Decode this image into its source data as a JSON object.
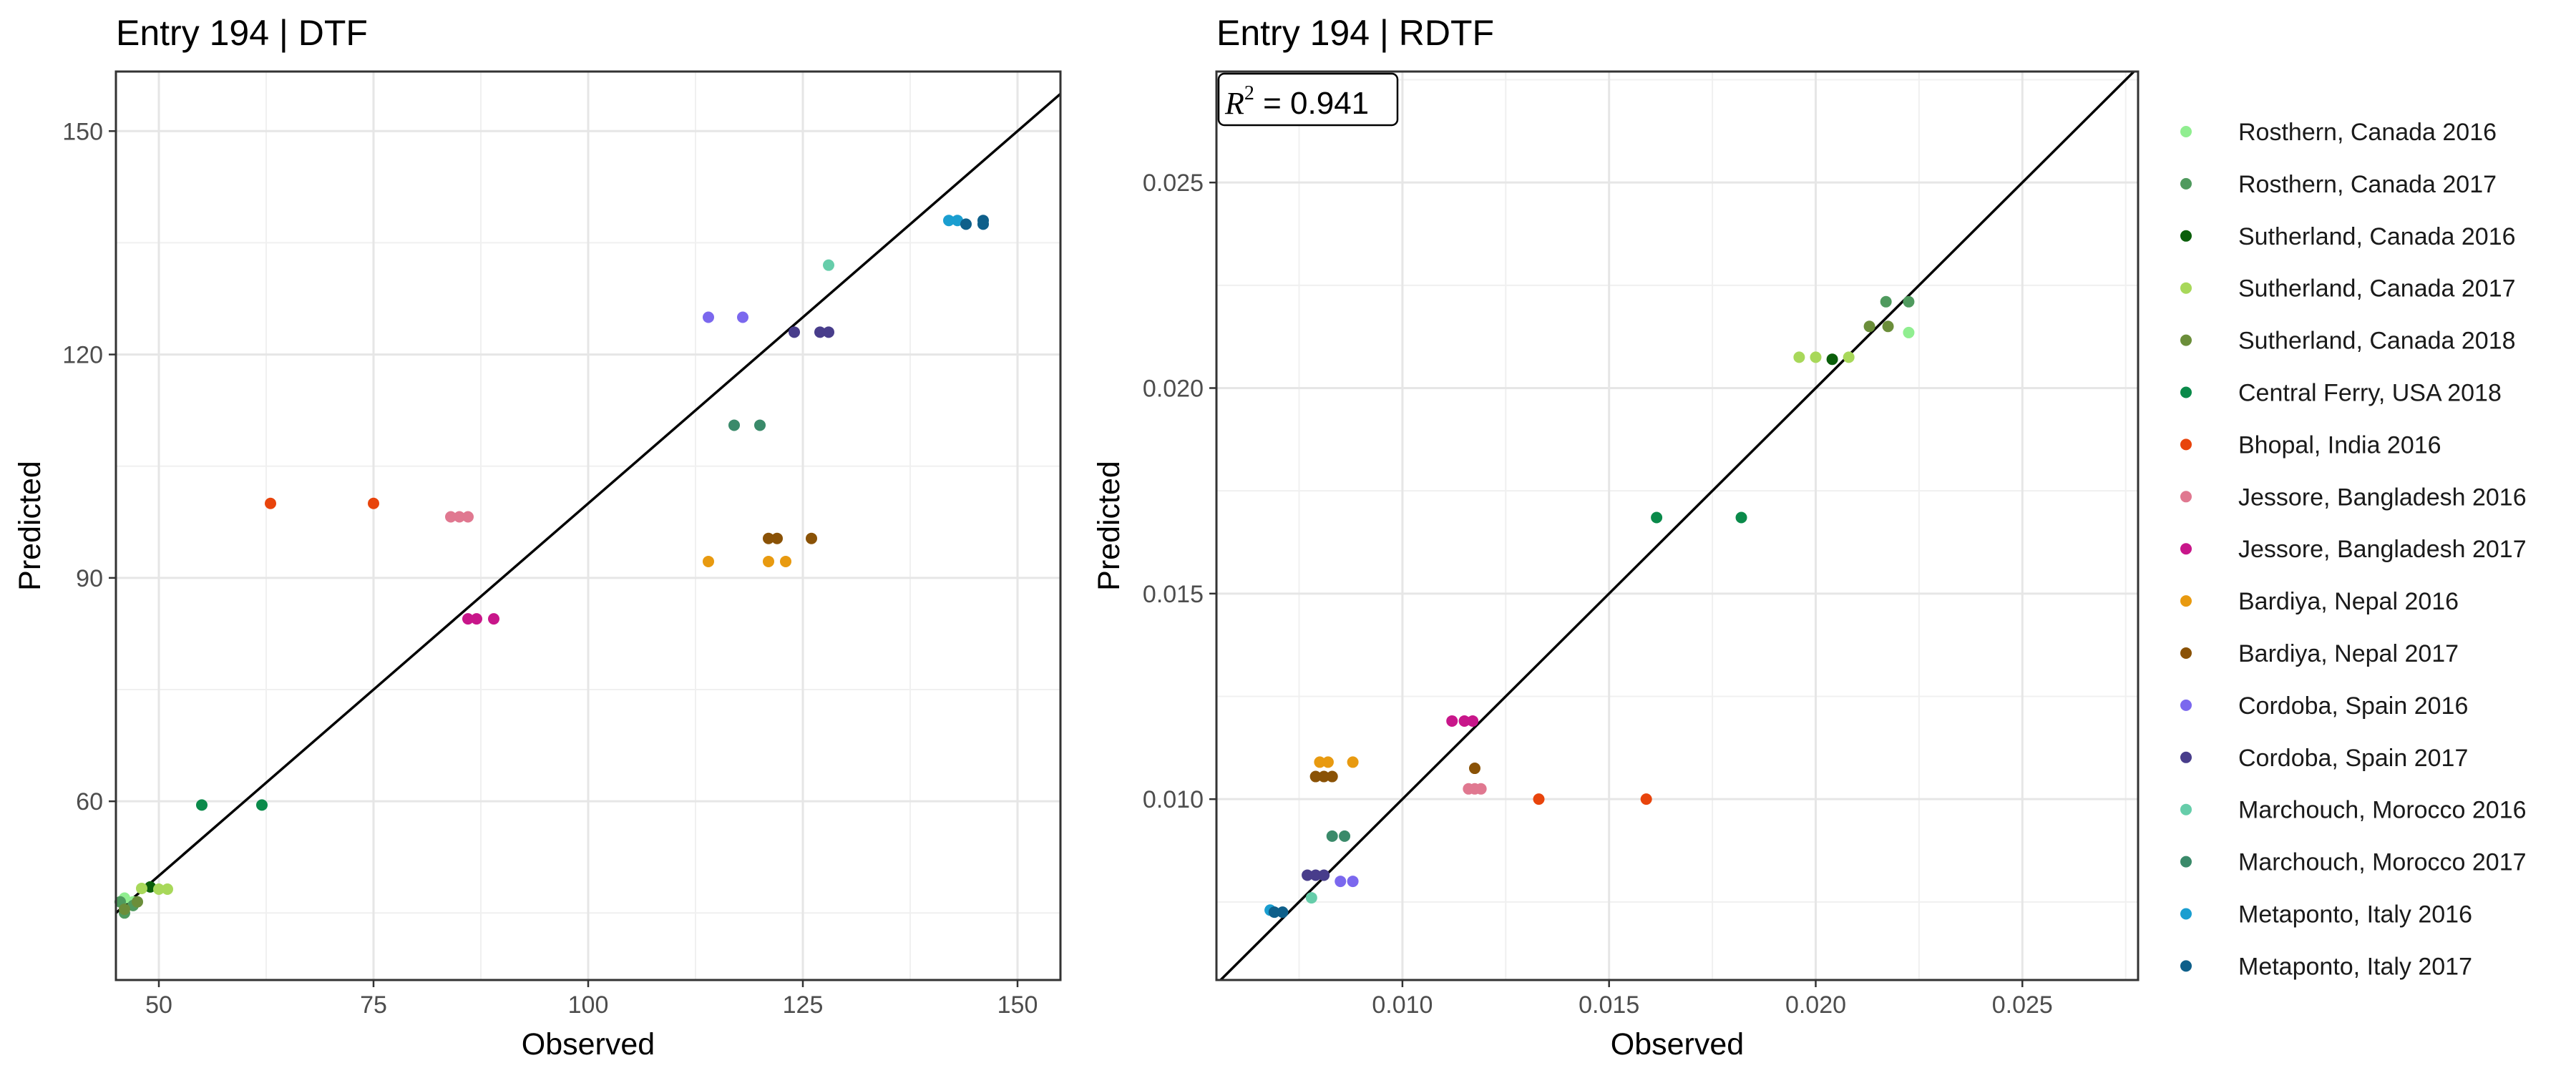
{
  "chart_data": [
    {
      "type": "scatter",
      "title": "Entry 194 | DTF",
      "xlabel": "Observed",
      "ylabel": "Predicted",
      "xlim": [
        45,
        155
      ],
      "ylim": [
        36,
        158
      ],
      "xticks": [
        50,
        75,
        100,
        125,
        150
      ],
      "yticks": [
        60,
        90,
        120,
        150
      ],
      "xtick_labels": [
        "50",
        "75",
        "100",
        "125",
        "150"
      ],
      "ytick_labels": [
        "60",
        "90",
        "120",
        "150"
      ],
      "grid": true,
      "reference_line": "y = x",
      "series": [
        {
          "name": "Rosthern, Canada 2016",
          "color": "#90ee90",
          "points": [
            [
              46,
              47
            ],
            [
              47,
              46.5
            ]
          ]
        },
        {
          "name": "Rosthern, Canada 2017",
          "color": "#4f9a5e",
          "points": [
            [
              45.5,
              46.5
            ],
            [
              46,
              45
            ],
            [
              47,
              46
            ]
          ]
        },
        {
          "name": "Sutherland, Canada 2016",
          "color": "#0a5e0a",
          "points": [
            [
              49,
              48.5
            ]
          ]
        },
        {
          "name": "Sutherland, Canada 2017",
          "color": "#a8d85a",
          "points": [
            [
              48,
              48.3
            ],
            [
              50,
              48.2
            ],
            [
              51,
              48.2
            ]
          ]
        },
        {
          "name": "Sutherland, Canada 2018",
          "color": "#6b8e3a",
          "points": [
            [
              46,
              45.5
            ],
            [
              47.5,
              46.5
            ]
          ]
        },
        {
          "name": "Central Ferry, USA 2018",
          "color": "#0a8a4a",
          "points": [
            [
              55,
              59.5
            ],
            [
              62,
              59.5
            ]
          ]
        },
        {
          "name": "Bhopal, India 2016",
          "color": "#e8440c",
          "points": [
            [
              63,
              100
            ],
            [
              75,
              100
            ]
          ]
        },
        {
          "name": "Jessore, Bangladesh 2016",
          "color": "#e07890",
          "points": [
            [
              84,
              98.2
            ],
            [
              85,
              98.2
            ],
            [
              86,
              98.2
            ]
          ]
        },
        {
          "name": "Jessore, Bangladesh 2017",
          "color": "#c8168a",
          "points": [
            [
              86,
              84.5
            ],
            [
              87,
              84.5
            ],
            [
              89,
              84.5
            ]
          ]
        },
        {
          "name": "Bardiya, Nepal 2016",
          "color": "#e89a10",
          "points": [
            [
              114,
              92.2
            ],
            [
              121,
              92.2
            ],
            [
              123,
              92.2
            ]
          ]
        },
        {
          "name": "Bardiya, Nepal 2017",
          "color": "#8a5206",
          "points": [
            [
              121,
              95.3
            ],
            [
              122,
              95.3
            ],
            [
              126,
              95.3
            ]
          ]
        },
        {
          "name": "Cordoba, Spain 2016",
          "color": "#7b68ee",
          "points": [
            [
              114,
              125
            ],
            [
              118,
              125
            ]
          ]
        },
        {
          "name": "Cordoba, Spain 2017",
          "color": "#483d8b",
          "points": [
            [
              124,
              123
            ],
            [
              127,
              123
            ],
            [
              128,
              123
            ]
          ]
        },
        {
          "name": "Marchouch, Morocco 2016",
          "color": "#66cdaa",
          "points": [
            [
              128,
              132
            ]
          ]
        },
        {
          "name": "Marchouch, Morocco 2017",
          "color": "#3a8a6a",
          "points": [
            [
              117,
              110.5
            ],
            [
              120,
              110.5
            ]
          ]
        },
        {
          "name": "Metaponto, Italy 2016",
          "color": "#1a9ed0",
          "points": [
            [
              142,
              138
            ],
            [
              143,
              138
            ]
          ]
        },
        {
          "name": "Metaponto, Italy 2017",
          "color": "#0e5f8a",
          "points": [
            [
              144,
              137.5
            ],
            [
              146,
              137.5
            ],
            [
              146,
              138
            ]
          ]
        }
      ]
    },
    {
      "type": "scatter",
      "title": "Entry 194 | RDTF",
      "xlabel": "Observed",
      "ylabel": "Predicted",
      "xlim": [
        0.0055,
        0.0278
      ],
      "ylim": [
        0.0056,
        0.0277
      ],
      "xticks": [
        0.01,
        0.015,
        0.02,
        0.025
      ],
      "yticks": [
        0.01,
        0.015,
        0.02,
        0.025
      ],
      "xtick_labels": [
        "0.010",
        "0.015",
        "0.020",
        "0.025"
      ],
      "ytick_labels": [
        "0.010",
        "0.015",
        "0.020",
        "0.025"
      ],
      "grid": true,
      "reference_line": "y = x",
      "annotation": {
        "label": "R",
        "exponent": "2",
        "equals": " = ",
        "value": "0.941",
        "position": "top-left"
      },
      "series": [
        {
          "name": "Rosthern, Canada 2016",
          "color": "#90ee90",
          "points": [
            [
              0.02225,
              0.02135
            ]
          ]
        },
        {
          "name": "Rosthern, Canada 2017",
          "color": "#4f9a5e",
          "points": [
            [
              0.0217,
              0.0221
            ],
            [
              0.02225,
              0.0221
            ]
          ]
        },
        {
          "name": "Sutherland, Canada 2016",
          "color": "#0a5e0a",
          "points": [
            [
              0.0204,
              0.0207
            ]
          ]
        },
        {
          "name": "Sutherland, Canada 2017",
          "color": "#a8d85a",
          "points": [
            [
              0.0196,
              0.02075
            ],
            [
              0.02,
              0.02075
            ],
            [
              0.0208,
              0.02075
            ]
          ]
        },
        {
          "name": "Sutherland, Canada 2018",
          "color": "#6b8e3a",
          "points": [
            [
              0.0213,
              0.0215
            ],
            [
              0.02175,
              0.0215
            ]
          ]
        },
        {
          "name": "Central Ferry, USA 2018",
          "color": "#0a8a4a",
          "points": [
            [
              0.01615,
              0.01685
            ],
            [
              0.0182,
              0.01685
            ]
          ]
        },
        {
          "name": "Bhopal, India 2016",
          "color": "#e8440c",
          "points": [
            [
              0.0133,
              0.01
            ],
            [
              0.0159,
              0.01
            ]
          ]
        },
        {
          "name": "Jessore, Bangladesh 2016",
          "color": "#e07890",
          "points": [
            [
              0.0116,
              0.01025
            ],
            [
              0.01175,
              0.01025
            ],
            [
              0.0119,
              0.01025
            ]
          ]
        },
        {
          "name": "Jessore, Bangladesh 2017",
          "color": "#c8168a",
          "points": [
            [
              0.0112,
              0.0119
            ],
            [
              0.0115,
              0.0119
            ],
            [
              0.0117,
              0.0119
            ]
          ]
        },
        {
          "name": "Bardiya, Nepal 2016",
          "color": "#e89a10",
          "points": [
            [
              0.008,
              0.0109
            ],
            [
              0.0082,
              0.0109
            ],
            [
              0.0088,
              0.0109
            ]
          ]
        },
        {
          "name": "Bardiya, Nepal 2017",
          "color": "#8a5206",
          "points": [
            [
              0.0079,
              0.01055
            ],
            [
              0.0081,
              0.01055
            ],
            [
              0.0083,
              0.01055
            ],
            [
              0.01175,
              0.01075
            ]
          ]
        },
        {
          "name": "Cordoba, Spain 2016",
          "color": "#7b68ee",
          "points": [
            [
              0.0085,
              0.008
            ],
            [
              0.0088,
              0.008
            ]
          ]
        },
        {
          "name": "Cordoba, Spain 2017",
          "color": "#483d8b",
          "points": [
            [
              0.0077,
              0.00815
            ],
            [
              0.0079,
              0.00815
            ],
            [
              0.0081,
              0.00815
            ]
          ]
        },
        {
          "name": "Marchouch, Morocco 2016",
          "color": "#66cdaa",
          "points": [
            [
              0.0078,
              0.0076
            ]
          ]
        },
        {
          "name": "Marchouch, Morocco 2017",
          "color": "#3a8a6a",
          "points": [
            [
              0.0083,
              0.0091
            ],
            [
              0.0086,
              0.0091
            ]
          ]
        },
        {
          "name": "Metaponto, Italy 2016",
          "color": "#1a9ed0",
          "points": [
            [
              0.0068,
              0.0073
            ]
          ]
        },
        {
          "name": "Metaponto, Italy 2017",
          "color": "#0e5f8a",
          "points": [
            [
              0.0069,
              0.00725
            ],
            [
              0.0071,
              0.00725
            ]
          ]
        }
      ]
    }
  ]
}
